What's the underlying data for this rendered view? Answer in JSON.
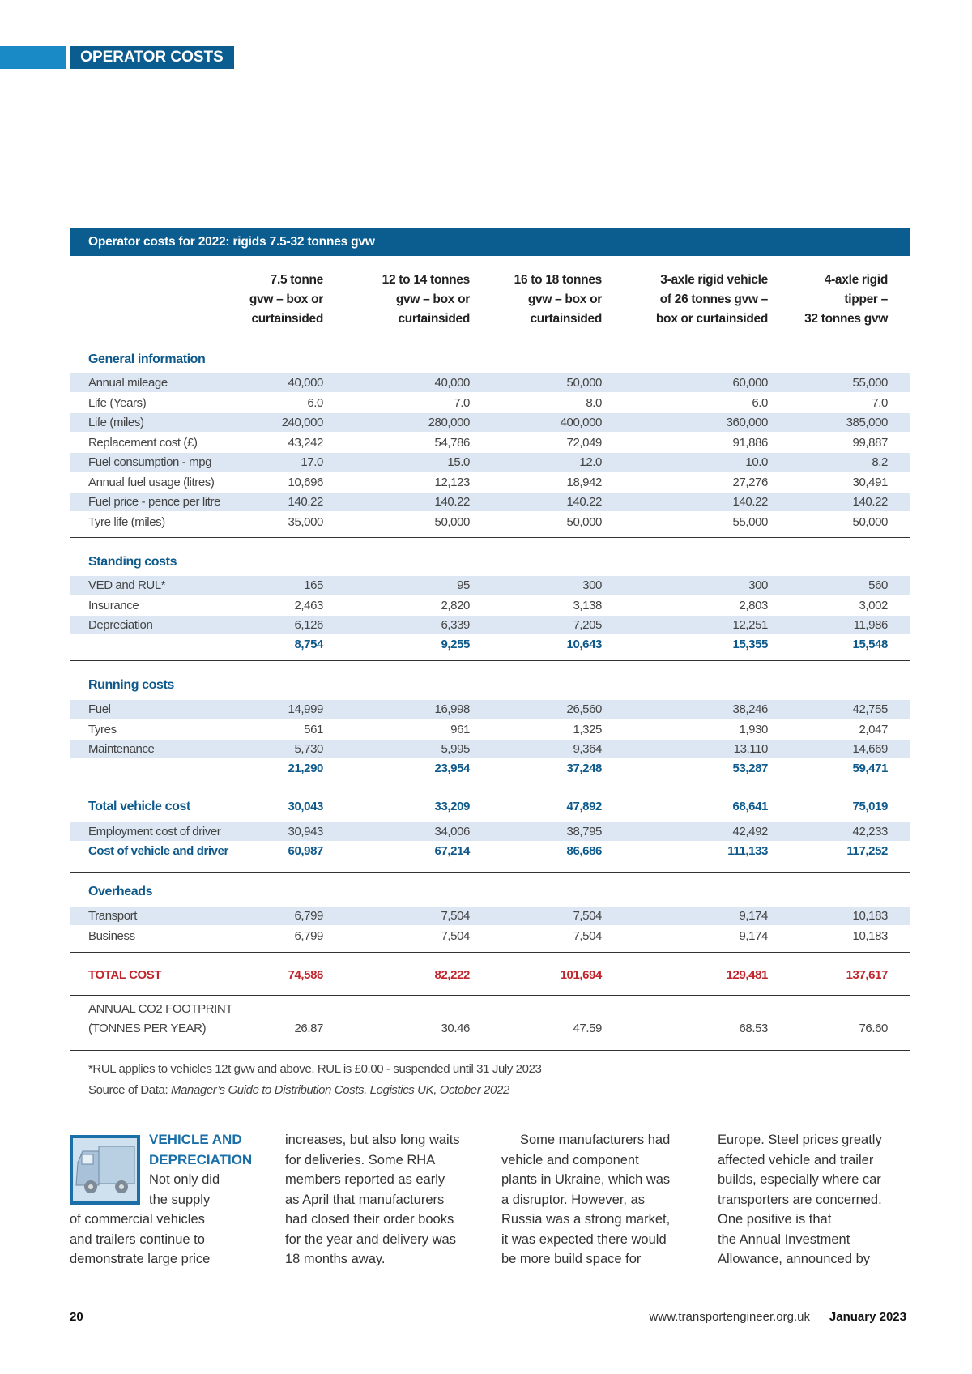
{
  "header": {
    "section": "OPERATOR COSTS"
  },
  "table": {
    "title": "Operator costs for 2022: rigids 7.5-32 tonnes gvw",
    "columns": [
      [
        "7.5 tonne",
        "gvw – box or",
        "curtainsided"
      ],
      [
        "12 to 14 tonnes",
        "gvw – box or",
        "curtainsided"
      ],
      [
        "16 to 18 tonnes",
        "gvw – box or",
        "curtainsided"
      ],
      [
        "3-axle rigid vehicle",
        "of 26 tonnes gvw –",
        "box or curtainsided"
      ],
      [
        "4-axle rigid",
        "tipper –",
        "32 tonnes gvw"
      ]
    ],
    "sections": [
      {
        "heading": "General information",
        "rows": [
          {
            "label": "Annual mileage",
            "values": [
              "40,000",
              "40,000",
              "50,000",
              "60,000",
              "55,000"
            ]
          },
          {
            "label": "Life (Years)",
            "values": [
              "6.0",
              "7.0",
              "8.0",
              "6.0",
              "7.0"
            ]
          },
          {
            "label": "Life (miles)",
            "values": [
              "240,000",
              "280,000",
              "400,000",
              "360,000",
              "385,000"
            ]
          },
          {
            "label": "Replacement cost (£)",
            "values": [
              "43,242",
              "54,786",
              "72,049",
              "91,886",
              "99,887"
            ]
          },
          {
            "label": "Fuel consumption - mpg",
            "values": [
              "17.0",
              "15.0",
              "12.0",
              "10.0",
              "8.2"
            ]
          },
          {
            "label": "Annual fuel usage (litres)",
            "values": [
              "10,696",
              "12,123",
              "18,942",
              "27,276",
              "30,491"
            ]
          },
          {
            "label": "Fuel price - pence per litre",
            "values": [
              "140.22",
              "140.22",
              "140.22",
              "140.22",
              "140.22"
            ]
          },
          {
            "label": "Tyre life (miles)",
            "values": [
              "35,000",
              "50,000",
              "50,000",
              "55,000",
              "50,000"
            ]
          }
        ]
      },
      {
        "heading": "Standing costs",
        "rows": [
          {
            "label": "VED and RUL*",
            "values": [
              "165",
              "95",
              "300",
              "300",
              "560"
            ]
          },
          {
            "label": "Insurance",
            "values": [
              "2,463",
              "2,820",
              "3,138",
              "2,803",
              "3,002"
            ]
          },
          {
            "label": "Depreciation",
            "values": [
              "6,126",
              "6,339",
              "7,205",
              "12,251",
              "11,986"
            ]
          }
        ],
        "subtotal": [
          "8,754",
          "9,255",
          "10,643",
          "15,355",
          "15,548"
        ]
      },
      {
        "heading": "Running costs",
        "rows": [
          {
            "label": "Fuel",
            "values": [
              "14,999",
              "16,998",
              "26,560",
              "38,246",
              "42,755"
            ]
          },
          {
            "label": "Tyres",
            "values": [
              "561",
              "961",
              "1,325",
              "1,930",
              "2,047"
            ]
          },
          {
            "label": "Maintenance",
            "values": [
              "5,730",
              "5,995",
              "9,364",
              "13,110",
              "14,669"
            ]
          }
        ],
        "subtotal": [
          "21,290",
          "23,954",
          "37,248",
          "53,287",
          "59,471"
        ]
      },
      {
        "heading": "Total vehicle cost",
        "heading_values": [
          "30,043",
          "33,209",
          "47,892",
          "68,641",
          "75,019"
        ],
        "rows": [
          {
            "label": "Employment cost of driver",
            "values": [
              "30,943",
              "34,006",
              "38,795",
              "42,492",
              "42,233"
            ]
          }
        ],
        "total": {
          "label": "Cost of vehicle and driver",
          "values": [
            "60,987",
            "67,214",
            "86,686",
            "111,133",
            "117,252"
          ]
        }
      },
      {
        "heading": "Overheads",
        "rows": [
          {
            "label": "Transport",
            "values": [
              "6,799",
              "7,504",
              "7,504",
              "9,174",
              "10,183"
            ]
          },
          {
            "label": "Business",
            "values": [
              "6,799",
              "7,504",
              "7,504",
              "9,174",
              "10,183"
            ]
          }
        ]
      }
    ],
    "grand_total": {
      "label": "TOTAL COST",
      "values": [
        "74,586",
        "82,222",
        "101,694",
        "129,481",
        "137,617"
      ]
    },
    "footprint": {
      "label": [
        "ANNUAL CO2 FOOTPRINT",
        "(TONNES PER YEAR)"
      ],
      "values": [
        "26.87",
        "30.46",
        "47.59",
        "68.53",
        "76.60"
      ]
    },
    "footnotes": {
      "note": "*RUL applies to vehicles 12t gvw and above. RUL is £0.00 - suspended until 31 July 2023",
      "source_prefix": "Source of Data: ",
      "source": "Manager’s Guide to Distribution Costs, Logistics UK, October 2022"
    }
  },
  "article": {
    "heading": [
      "VEHICLE AND",
      "DEPRECIATION"
    ],
    "columns": [
      [
        "Not only did",
        "the supply",
        "of commercial vehicles",
        "and trailers continue to",
        "demonstrate large price"
      ],
      [
        "increases, but also long waits",
        "for deliveries. Some RHA",
        "members reported as early",
        "as April that manufacturers",
        "had closed their order books",
        "for the year and delivery was",
        "18 months away."
      ],
      [
        "Some manufacturers had",
        "vehicle and component",
        "plants in Ukraine, which was",
        "a disruptor. However, as",
        "Russia was a strong market,",
        "it was expected there would",
        "be more build space for"
      ],
      [
        "Europe. Steel prices greatly",
        "affected vehicle and trailer",
        "builds, especially where car",
        "transporters are concerned.",
        "One positive is that",
        "the Annual Investment",
        "Allowance, announced by"
      ]
    ]
  },
  "footer": {
    "page": "20",
    "url": "www.transportengineer.org.uk",
    "date": "January 2023"
  }
}
